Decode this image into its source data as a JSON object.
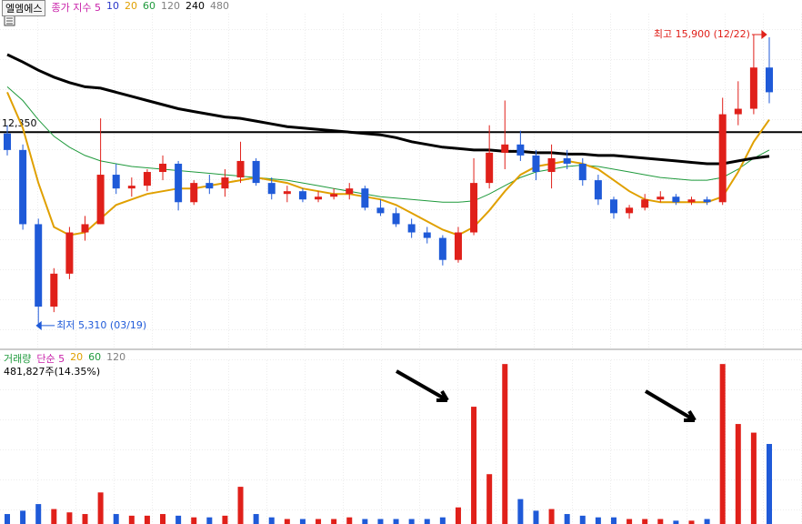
{
  "chart_data": {
    "type": "candlestick",
    "stock_name": "엘엠에스",
    "price_legend": [
      {
        "label": "종가 지수 5",
        "color": "#c81fa8"
      },
      {
        "label": "10",
        "color": "#2a36c8"
      },
      {
        "label": "20",
        "color": "#e0a000"
      },
      {
        "label": "60",
        "color": "#1f9a3c"
      },
      {
        "label": "120",
        "color": "#808080"
      },
      {
        "label": "240",
        "color": "#000000"
      },
      {
        "label": "480",
        "color": "#808080"
      }
    ],
    "volume_legend": [
      {
        "label": "거래량",
        "color": "#1f9a3c"
      },
      {
        "label": "단순 5",
        "color": "#c81fa8"
      },
      {
        "label": "20",
        "color": "#e0a000"
      },
      {
        "label": "60",
        "color": "#1f9a3c"
      },
      {
        "label": "120",
        "color": "#808080"
      }
    ],
    "volume_info": "481,827주(14.35%)",
    "high_annotation": "최고 15,900 (12/22)",
    "low_annotation": "최저 5,310 (03/19)",
    "reference_line": {
      "value": 12350,
      "label": "12,350"
    },
    "up_color": "#e0201a",
    "down_color": "#1f5ad8",
    "ylim": [
      4480,
      16660
    ],
    "volume_ylim": [
      0,
      1046000
    ],
    "open": [
      12300,
      11700,
      9000,
      6000,
      7200,
      8700,
      9000,
      10800,
      10300,
      10400,
      10900,
      11200,
      9800,
      10500,
      10300,
      10700,
      11300,
      10500,
      10100,
      10200,
      9900,
      10000,
      10100,
      10300,
      9600,
      9400,
      9000,
      8700,
      8500,
      7700,
      8700,
      10500,
      11600,
      11900,
      11500,
      10900,
      11400,
      11200,
      10600,
      9900,
      9400,
      9600,
      9900,
      10000,
      9800,
      9900,
      9800,
      13000,
      13200,
      14700
    ],
    "high": [
      12600,
      11900,
      9200,
      7400,
      8900,
      9300,
      12850,
      11200,
      10700,
      11000,
      11500,
      11300,
      10600,
      10800,
      11000,
      12000,
      11400,
      10700,
      10400,
      10300,
      10200,
      10300,
      10500,
      10400,
      9900,
      9600,
      9200,
      8900,
      8600,
      8900,
      11400,
      12600,
      13500,
      12400,
      11700,
      11900,
      11700,
      11400,
      10800,
      10000,
      9700,
      10100,
      10200,
      10100,
      10000,
      10000,
      13600,
      14200,
      15900,
      15800
    ],
    "low": [
      11500,
      8800,
      5310,
      5800,
      7000,
      8400,
      9000,
      10100,
      10000,
      10200,
      10600,
      9500,
      9700,
      10100,
      10000,
      10500,
      10400,
      9900,
      9800,
      9800,
      9800,
      9900,
      9900,
      9500,
      9300,
      8900,
      8500,
      8300,
      7500,
      7600,
      8600,
      10300,
      11000,
      11300,
      10600,
      10300,
      11000,
      10400,
      9700,
      9200,
      9200,
      9500,
      9800,
      9700,
      9700,
      9700,
      9700,
      12600,
      13000,
      13400
    ],
    "close": [
      11700,
      9000,
      6000,
      7200,
      8700,
      9000,
      10800,
      10300,
      10400,
      10900,
      11200,
      9800,
      10500,
      10300,
      10700,
      11300,
      10500,
      10100,
      10200,
      9900,
      10000,
      10100,
      10300,
      9600,
      9400,
      9000,
      8700,
      8500,
      7700,
      8700,
      10500,
      11600,
      11900,
      11500,
      10900,
      11400,
      11200,
      10600,
      9900,
      9400,
      9600,
      9900,
      10000,
      9800,
      9900,
      9800,
      13000,
      13200,
      14700,
      13800
    ],
    "volume": [
      60000,
      80000,
      120000,
      90000,
      70000,
      60000,
      190000,
      60000,
      50000,
      50000,
      60000,
      50000,
      40000,
      40000,
      50000,
      224000,
      60000,
      40000,
      30000,
      30000,
      30000,
      30000,
      40000,
      30000,
      30000,
      30000,
      30000,
      30000,
      40000,
      100000,
      706000,
      300000,
      963000,
      150000,
      80000,
      90000,
      60000,
      50000,
      40000,
      40000,
      30000,
      30000,
      30000,
      20000,
      20000,
      30000,
      963000,
      602000,
      550000,
      481827
    ],
    "moving_averages": [
      {
        "color": "#1f9a3c",
        "line_width": 1,
        "values": [
          14000,
          13500,
          12800,
          12200,
          11800,
          11500,
          11300,
          11200,
          11100,
          11050,
          11000,
          10950,
          10900,
          10850,
          10800,
          10750,
          10700,
          10650,
          10600,
          10500,
          10400,
          10300,
          10200,
          10100,
          10000,
          9950,
          9900,
          9850,
          9800,
          9800,
          9850,
          10100,
          10400,
          10700,
          10900,
          11000,
          11100,
          11150,
          11100,
          11000,
          10900,
          10800,
          10700,
          10650,
          10600,
          10600,
          10700,
          11000,
          11400,
          11700
        ]
      },
      {
        "color": "#e0a000",
        "line_width": 2,
        "values": [
          13800,
          12500,
          10500,
          8900,
          8600,
          8700,
          9200,
          9700,
          9900,
          10100,
          10200,
          10300,
          10300,
          10400,
          10500,
          10600,
          10700,
          10600,
          10500,
          10300,
          10200,
          10100,
          10100,
          10000,
          9900,
          9700,
          9400,
          9100,
          8800,
          8600,
          8900,
          9500,
          10200,
          10800,
          11100,
          11200,
          11300,
          11200,
          11000,
          10600,
          10200,
          9900,
          9800,
          9800,
          9800,
          9800,
          10000,
          10900,
          12000,
          12800
        ]
      },
      {
        "color": "#000000",
        "line_width": 3,
        "values": [
          15170,
          14900,
          14600,
          14350,
          14150,
          14000,
          13950,
          13800,
          13650,
          13500,
          13350,
          13200,
          13100,
          13000,
          12900,
          12850,
          12750,
          12650,
          12550,
          12500,
          12450,
          12400,
          12350,
          12300,
          12250,
          12150,
          12000,
          11900,
          11800,
          11750,
          11700,
          11700,
          11650,
          11650,
          11600,
          11600,
          11550,
          11550,
          11500,
          11500,
          11450,
          11400,
          11350,
          11300,
          11250,
          11200,
          11200,
          11300,
          11400,
          11470
        ]
      }
    ]
  }
}
